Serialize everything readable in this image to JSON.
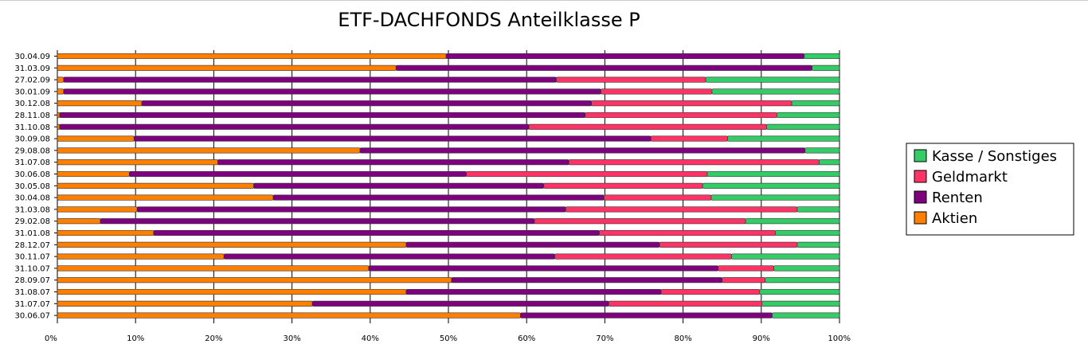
{
  "chart_data": {
    "type": "bar",
    "orientation": "horizontal",
    "stacked": true,
    "normalized": true,
    "title": "ETF-DACHFONDS Anteilklasse P",
    "xlabel": "",
    "ylabel": "",
    "xlim": [
      0,
      100
    ],
    "xticks": [
      "0%",
      "10%",
      "20%",
      "30%",
      "40%",
      "50%",
      "60%",
      "70%",
      "80%",
      "90%",
      "100%"
    ],
    "grid": true,
    "legend_position": "right",
    "legend_order": [
      "Kasse / Sonstiges",
      "Geldmarkt",
      "Renten",
      "Aktien"
    ],
    "categories": [
      "30.04.09",
      "31.03.09",
      "27.02.09",
      "30.01.09",
      "30.12.08",
      "28.11.08",
      "31.10.08",
      "30.09.08",
      "29.08.08",
      "31.07.08",
      "30.06.08",
      "30.05.08",
      "30.04.08",
      "31.03.08",
      "29.02.08",
      "31.01.08",
      "28.12.07",
      "30.11.07",
      "31.10.07",
      "28.09.07",
      "31.08.07",
      "31.07.07",
      "30.06.07"
    ],
    "series": [
      {
        "name": "Aktien",
        "color": "#ff7f00",
        "values": [
          49.7,
          43.3,
          0.8,
          0.8,
          10.8,
          0.3,
          0.3,
          9.8,
          38.7,
          20.5,
          9.2,
          25.1,
          27.6,
          10.2,
          5.5,
          12.3,
          44.6,
          21.3,
          39.8,
          50.4,
          44.6,
          32.6,
          59.2
        ]
      },
      {
        "name": "Renten",
        "color": "#7f007f",
        "values": [
          45.8,
          53.2,
          63.0,
          68.7,
          57.5,
          67.2,
          60.0,
          66.1,
          56.9,
          44.9,
          43.1,
          37.1,
          42.3,
          54.8,
          55.5,
          57.0,
          32.4,
          42.3,
          44.7,
          34.6,
          32.6,
          37.9,
          32.2
        ]
      },
      {
        "name": "Geldmarkt",
        "color": "#ff3366",
        "values": [
          0,
          0,
          19.1,
          14.2,
          25.6,
          24.5,
          30.4,
          9.8,
          0,
          32.0,
          30.8,
          20.3,
          13.7,
          29.6,
          27.0,
          22.5,
          17.6,
          22.6,
          7.1,
          5.5,
          12.6,
          19.6,
          0
        ]
      },
      {
        "name": "Kasse / Sonstiges",
        "color": "#33cc66",
        "values": [
          4.5,
          3.5,
          17.1,
          16.3,
          6.1,
          8.0,
          9.3,
          14.3,
          4.4,
          2.6,
          16.9,
          17.5,
          16.4,
          5.4,
          12.0,
          8.2,
          5.4,
          13.8,
          8.4,
          9.5,
          10.2,
          9.9,
          8.6
        ]
      }
    ]
  }
}
